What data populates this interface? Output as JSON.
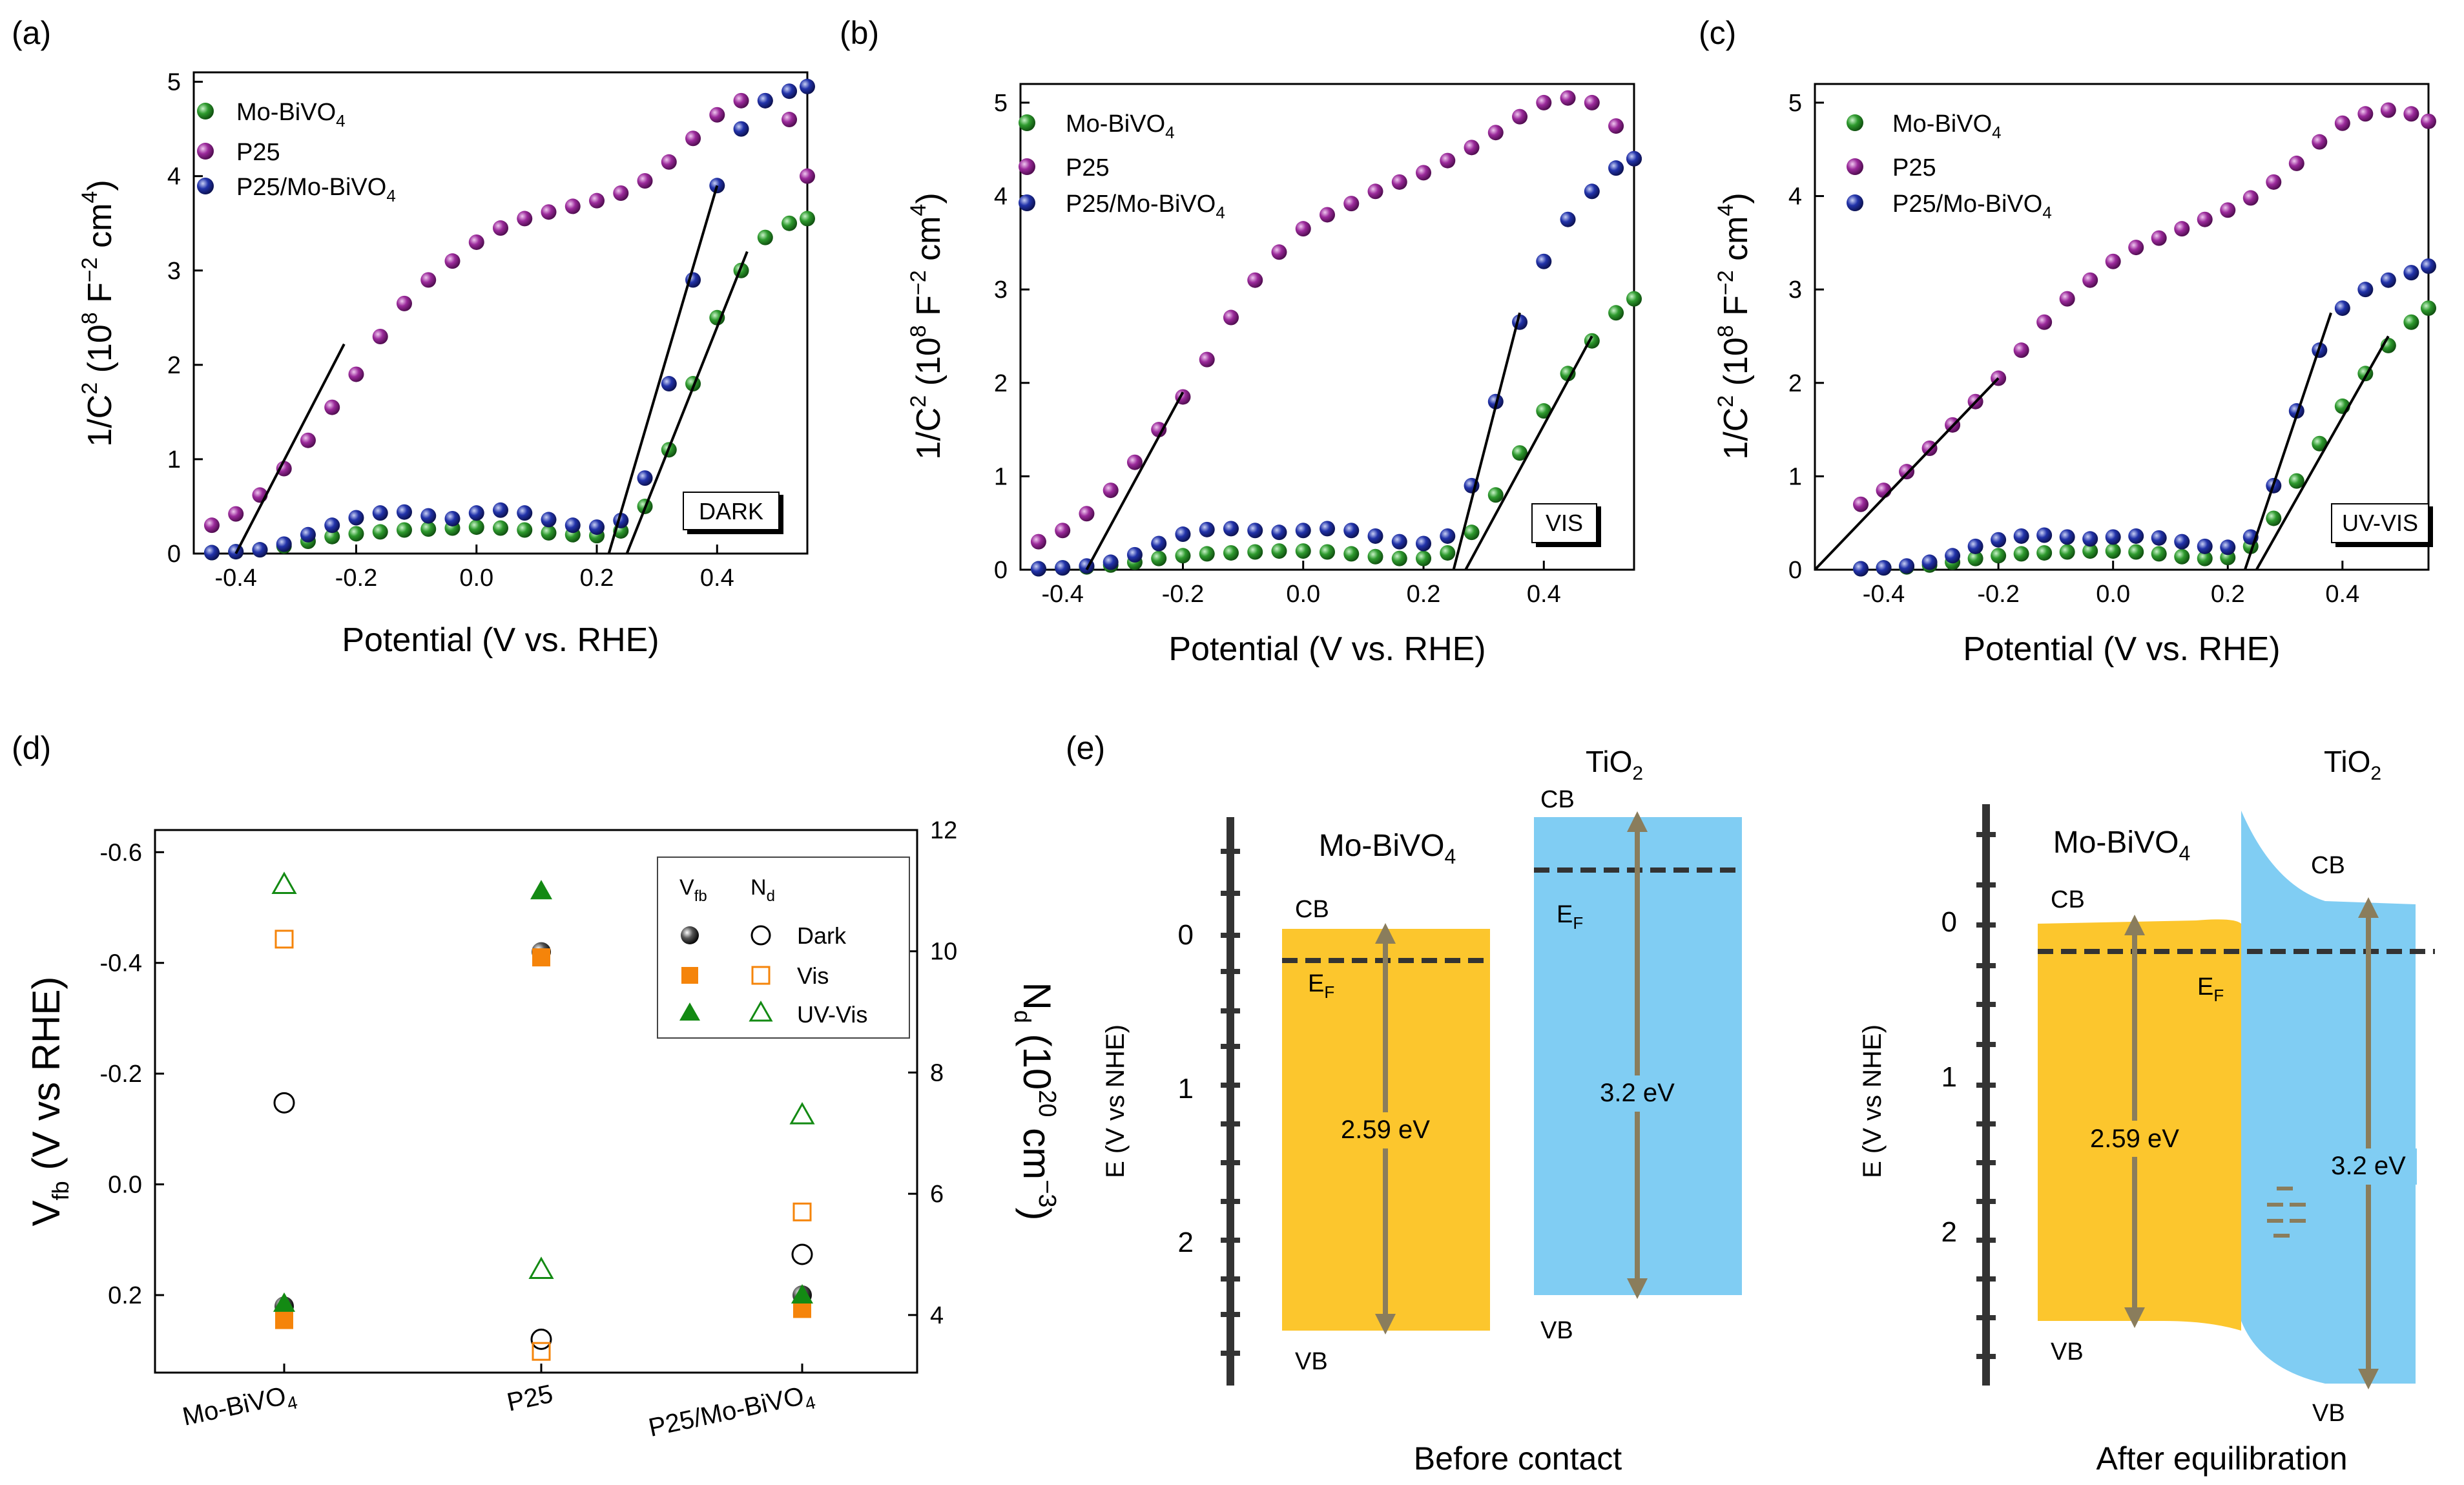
{
  "chart_data": [
    {
      "panel": "(a)",
      "type": "scatter",
      "title": "",
      "xlabel": "Potential (V vs. RHE)",
      "ylabel": "1/C",
      "ylabel_sup": "2",
      "ylabel_tail": " (10",
      "ylabel_exp": "8",
      "ylabel_unit": " F",
      "ylabel_unit_exp": "−2",
      "ylabel_unit2": " cm",
      "ylabel_unit2_exp": "4",
      "ylabel_end": ")",
      "xlim": [
        -0.47,
        0.55
      ],
      "ylim": [
        0,
        5.1
      ],
      "xticks": [
        "-0.4",
        "-0.2",
        "0.0",
        "0.2",
        "0.4"
      ],
      "xtick_values": [
        -0.4,
        -0.2,
        0.0,
        0.2,
        0.4
      ],
      "yticks": [
        "0",
        "1",
        "2",
        "3",
        "4",
        "5"
      ],
      "ytick_values": [
        0,
        1,
        2,
        3,
        4,
        5
      ],
      "condition_label": "DARK",
      "legend": [
        {
          "label": "Mo-BiVO",
          "sub": "4",
          "color": "#2e9a2e"
        },
        {
          "label": "P25",
          "sub": "",
          "color": "#9b2a9b"
        },
        {
          "label": "P25/Mo-BiVO",
          "sub": "4",
          "color": "#2233aa"
        }
      ],
      "series": [
        {
          "name": "P25",
          "color": "#9b2a9b",
          "x": [
            -0.44,
            -0.4,
            -0.36,
            -0.32,
            -0.28,
            -0.24,
            -0.2,
            -0.16,
            -0.12,
            -0.08,
            -0.04,
            0.0,
            0.04,
            0.08,
            0.12,
            0.16,
            0.2,
            0.24,
            0.28,
            0.32,
            0.36,
            0.4,
            0.44,
            0.48,
            0.52,
            0.55
          ],
          "y": [
            0.3,
            0.42,
            0.62,
            0.9,
            1.2,
            1.55,
            1.9,
            2.3,
            2.65,
            2.9,
            3.1,
            3.3,
            3.45,
            3.55,
            3.62,
            3.68,
            3.74,
            3.82,
            3.95,
            4.15,
            4.4,
            4.65,
            4.8,
            4.8,
            4.6,
            4.0
          ]
        },
        {
          "name": "Mo-BiVO4",
          "color": "#2e9a2e",
          "x": [
            -0.44,
            -0.4,
            -0.36,
            -0.32,
            -0.28,
            -0.24,
            -0.2,
            -0.16,
            -0.12,
            -0.08,
            -0.04,
            0.0,
            0.04,
            0.08,
            0.12,
            0.16,
            0.2,
            0.24,
            0.28,
            0.32,
            0.36,
            0.4,
            0.44,
            0.48,
            0.52,
            0.55
          ],
          "y": [
            0.01,
            0.02,
            0.04,
            0.08,
            0.13,
            0.18,
            0.21,
            0.23,
            0.25,
            0.26,
            0.27,
            0.28,
            0.27,
            0.25,
            0.22,
            0.2,
            0.19,
            0.24,
            0.5,
            1.1,
            1.8,
            2.5,
            3.0,
            3.35,
            3.5,
            3.55
          ]
        },
        {
          "name": "P25/Mo-BiVO4",
          "color": "#2233aa",
          "x": [
            -0.44,
            -0.4,
            -0.36,
            -0.32,
            -0.28,
            -0.24,
            -0.2,
            -0.16,
            -0.12,
            -0.08,
            -0.04,
            0.0,
            0.04,
            0.08,
            0.12,
            0.16,
            0.2,
            0.24,
            0.28,
            0.32,
            0.36,
            0.4,
            0.44,
            0.48,
            0.52,
            0.55
          ],
          "y": [
            0.01,
            0.02,
            0.04,
            0.1,
            0.2,
            0.3,
            0.38,
            0.43,
            0.44,
            0.4,
            0.37,
            0.43,
            0.46,
            0.43,
            0.36,
            0.3,
            0.28,
            0.35,
            0.8,
            1.8,
            2.9,
            3.9,
            4.5,
            4.8,
            4.9,
            4.95
          ]
        }
      ],
      "fit_lines": [
        {
          "x": [
            -0.4,
            -0.22
          ],
          "y": [
            0.0,
            2.22
          ]
        },
        {
          "x": [
            0.22,
            0.4
          ],
          "y": [
            0.0,
            3.9
          ]
        },
        {
          "x": [
            0.25,
            0.45
          ],
          "y": [
            0.0,
            3.2
          ]
        }
      ]
    },
    {
      "panel": "(b)",
      "type": "scatter",
      "title": "",
      "xlabel": "Potential (V vs. RHE)",
      "ylabel": "1/C",
      "ylabel_sup": "2",
      "ylabel_tail": " (10",
      "ylabel_exp": "8",
      "ylabel_unit": " F",
      "ylabel_unit_exp": "−2",
      "ylabel_unit2": " cm",
      "ylabel_unit2_exp": "4",
      "ylabel_end": ")",
      "xlim": [
        -0.47,
        0.55
      ],
      "ylim": [
        0,
        5.2
      ],
      "xticks": [
        "-0.4",
        "-0.2",
        "0.0",
        "0.2",
        "0.4"
      ],
      "xtick_values": [
        -0.4,
        -0.2,
        0.0,
        0.2,
        0.4
      ],
      "yticks": [
        "0",
        "1",
        "2",
        "3",
        "4",
        "5"
      ],
      "ytick_values": [
        0,
        1,
        2,
        3,
        4,
        5
      ],
      "condition_label": "VIS",
      "legend": [
        {
          "label": "Mo-BiVO",
          "sub": "4",
          "color": "#2e9a2e"
        },
        {
          "label": "P25",
          "sub": "",
          "color": "#9b2a9b"
        },
        {
          "label": "P25/Mo-BiVO",
          "sub": "4",
          "color": "#2233aa"
        }
      ],
      "series": [
        {
          "name": "P25",
          "color": "#9b2a9b",
          "x": [
            -0.44,
            -0.4,
            -0.36,
            -0.32,
            -0.28,
            -0.24,
            -0.2,
            -0.16,
            -0.12,
            -0.08,
            -0.04,
            0.0,
            0.04,
            0.08,
            0.12,
            0.16,
            0.2,
            0.24,
            0.28,
            0.32,
            0.36,
            0.4,
            0.44,
            0.48,
            0.52,
            0.55
          ],
          "y": [
            0.3,
            0.42,
            0.6,
            0.85,
            1.15,
            1.5,
            1.85,
            2.25,
            2.7,
            3.1,
            3.4,
            3.65,
            3.8,
            3.92,
            4.05,
            4.15,
            4.25,
            4.38,
            4.52,
            4.68,
            4.85,
            5.0,
            5.05,
            5.0,
            4.75,
            4.4
          ]
        },
        {
          "name": "Mo-BiVO4",
          "color": "#2e9a2e",
          "x": [
            -0.44,
            -0.4,
            -0.36,
            -0.32,
            -0.28,
            -0.24,
            -0.2,
            -0.16,
            -0.12,
            -0.08,
            -0.04,
            0.0,
            0.04,
            0.08,
            0.12,
            0.16,
            0.2,
            0.24,
            0.28,
            0.32,
            0.36,
            0.4,
            0.44,
            0.48,
            0.52,
            0.55
          ],
          "y": [
            0.01,
            0.02,
            0.03,
            0.05,
            0.08,
            0.12,
            0.15,
            0.17,
            0.18,
            0.19,
            0.2,
            0.2,
            0.19,
            0.17,
            0.14,
            0.12,
            0.12,
            0.18,
            0.4,
            0.8,
            1.25,
            1.7,
            2.1,
            2.45,
            2.75,
            2.9
          ]
        },
        {
          "name": "P25/Mo-BiVO4",
          "color": "#2233aa",
          "x": [
            -0.44,
            -0.4,
            -0.36,
            -0.32,
            -0.28,
            -0.24,
            -0.2,
            -0.16,
            -0.12,
            -0.08,
            -0.04,
            0.0,
            0.04,
            0.08,
            0.12,
            0.16,
            0.2,
            0.24,
            0.28,
            0.32,
            0.36,
            0.4,
            0.44,
            0.48,
            0.52,
            0.55
          ],
          "y": [
            0.01,
            0.02,
            0.04,
            0.08,
            0.16,
            0.28,
            0.38,
            0.43,
            0.44,
            0.42,
            0.4,
            0.42,
            0.44,
            0.42,
            0.36,
            0.3,
            0.28,
            0.36,
            0.9,
            1.8,
            2.65,
            3.3,
            3.75,
            4.05,
            4.3,
            4.4
          ]
        }
      ],
      "fit_lines": [
        {
          "x": [
            -0.36,
            -0.2
          ],
          "y": [
            0.0,
            1.9
          ]
        },
        {
          "x": [
            0.25,
            0.36
          ],
          "y": [
            0.0,
            2.75
          ]
        },
        {
          "x": [
            0.27,
            0.48
          ],
          "y": [
            0.0,
            2.5
          ]
        }
      ]
    },
    {
      "panel": "(c)",
      "type": "scatter",
      "title": "",
      "xlabel": "Potential (V vs. RHE)",
      "ylabel": "1/C",
      "ylabel_sup": "2",
      "ylabel_tail": " (10",
      "ylabel_exp": "8",
      "ylabel_unit": " F",
      "ylabel_unit_exp": "−2",
      "ylabel_unit2": " cm",
      "ylabel_unit2_exp": "4",
      "ylabel_end": ")",
      "xlim": [
        -0.52,
        0.55
      ],
      "ylim": [
        0,
        5.2
      ],
      "xticks": [
        "-0.4",
        "-0.2",
        "0.0",
        "0.2",
        "0.4"
      ],
      "xtick_values": [
        -0.4,
        -0.2,
        0.0,
        0.2,
        0.4
      ],
      "yticks": [
        "0",
        "1",
        "2",
        "3",
        "4",
        "5"
      ],
      "ytick_values": [
        0,
        1,
        2,
        3,
        4,
        5
      ],
      "condition_label": "UV-VIS",
      "legend": [
        {
          "label": "Mo-BiVO",
          "sub": "4",
          "color": "#2e9a2e"
        },
        {
          "label": "P25",
          "sub": "",
          "color": "#9b2a9b"
        },
        {
          "label": "P25/Mo-BiVO",
          "sub": "4",
          "color": "#2233aa"
        }
      ],
      "series": [
        {
          "name": "P25",
          "color": "#9b2a9b",
          "x": [
            -0.44,
            -0.4,
            -0.36,
            -0.32,
            -0.28,
            -0.24,
            -0.2,
            -0.16,
            -0.12,
            -0.08,
            -0.04,
            0.0,
            0.04,
            0.08,
            0.12,
            0.16,
            0.2,
            0.24,
            0.28,
            0.32,
            0.36,
            0.4,
            0.44,
            0.48,
            0.52,
            0.55
          ],
          "y": [
            0.7,
            0.85,
            1.05,
            1.3,
            1.55,
            1.8,
            2.05,
            2.35,
            2.65,
            2.9,
            3.1,
            3.3,
            3.45,
            3.55,
            3.65,
            3.75,
            3.85,
            3.98,
            4.15,
            4.35,
            4.58,
            4.78,
            4.88,
            4.92,
            4.88,
            4.8
          ]
        },
        {
          "name": "Mo-BiVO4",
          "color": "#2e9a2e",
          "x": [
            -0.44,
            -0.4,
            -0.36,
            -0.32,
            -0.28,
            -0.24,
            -0.2,
            -0.16,
            -0.12,
            -0.08,
            -0.04,
            0.0,
            0.04,
            0.08,
            0.12,
            0.16,
            0.2,
            0.24,
            0.28,
            0.32,
            0.36,
            0.4,
            0.44,
            0.48,
            0.52,
            0.55
          ],
          "y": [
            0.01,
            0.02,
            0.03,
            0.05,
            0.08,
            0.12,
            0.15,
            0.17,
            0.18,
            0.19,
            0.2,
            0.2,
            0.19,
            0.17,
            0.14,
            0.12,
            0.13,
            0.25,
            0.55,
            0.95,
            1.35,
            1.75,
            2.1,
            2.4,
            2.65,
            2.8
          ]
        },
        {
          "name": "P25/Mo-BiVO4",
          "color": "#2233aa",
          "x": [
            -0.44,
            -0.4,
            -0.36,
            -0.32,
            -0.28,
            -0.24,
            -0.2,
            -0.16,
            -0.12,
            -0.08,
            -0.04,
            0.0,
            0.04,
            0.08,
            0.12,
            0.16,
            0.2,
            0.24,
            0.28,
            0.32,
            0.36,
            0.4,
            0.44,
            0.48,
            0.52,
            0.55
          ],
          "y": [
            0.01,
            0.02,
            0.04,
            0.08,
            0.15,
            0.25,
            0.32,
            0.36,
            0.37,
            0.35,
            0.33,
            0.35,
            0.36,
            0.34,
            0.3,
            0.25,
            0.24,
            0.35,
            0.9,
            1.7,
            2.35,
            2.8,
            3.0,
            3.1,
            3.18,
            3.25
          ]
        }
      ],
      "fit_lines": [
        {
          "x": [
            -0.52,
            -0.2
          ],
          "y": [
            0.0,
            2.05
          ]
        },
        {
          "x": [
            0.23,
            0.38
          ],
          "y": [
            0.0,
            2.75
          ]
        },
        {
          "x": [
            0.25,
            0.48
          ],
          "y": [
            0.0,
            2.5
          ]
        }
      ]
    },
    {
      "panel": "(d)",
      "type": "scatter",
      "title": "",
      "categories": [
        "Mo-BiVO",
        "P25",
        "P25/Mo-BiVO"
      ],
      "category_subs": [
        "4",
        "",
        "4"
      ],
      "ylabel": "V",
      "ylabel_sub": "fb",
      "ylabel_rest": " (V vs RHE)",
      "y2label": "N",
      "y2label_sub": "d",
      "y2label_rest": " (10",
      "y2label_exp": "20",
      "y2label_unit": " cm",
      "y2label_unit_exp": "−3",
      "y2label_end": ")",
      "ylim": [
        0.34,
        -0.64
      ],
      "y2lim": [
        3.05,
        12.0
      ],
      "yticks": [
        "-0.6",
        "-0.4",
        "-0.2",
        "0.0",
        "0.2"
      ],
      "ytick_values": [
        -0.6,
        -0.4,
        -0.2,
        0.0,
        0.2
      ],
      "y2ticks": [
        "4",
        "6",
        "8",
        "10",
        "12"
      ],
      "y2tick_values": [
        4,
        6,
        8,
        10,
        12
      ],
      "legend_header_left": "V",
      "legend_header_left_sub": "fb",
      "legend_header_right": "N",
      "legend_header_right_sub": "d",
      "legend": [
        {
          "label": "Dark",
          "color": "#000000"
        },
        {
          "label": "Vis",
          "color": "#f5840a"
        },
        {
          "label": "UV-Vis",
          "color": "#138a13"
        }
      ],
      "series": [
        {
          "name": "Vfb Dark",
          "axis": "left",
          "marker": "sphere",
          "color": "#000000",
          "values": [
            0.22,
            -0.42,
            0.2
          ]
        },
        {
          "name": "Vfb Vis",
          "axis": "left",
          "marker": "square-filled",
          "color": "#f5840a",
          "values": [
            0.245,
            -0.41,
            0.225
          ]
        },
        {
          "name": "Vfb UV-Vis",
          "axis": "left",
          "marker": "triangle-filled",
          "color": "#138a13",
          "values": [
            0.215,
            -0.53,
            0.2
          ]
        },
        {
          "name": "Nd Dark",
          "axis": "right",
          "marker": "circle-open",
          "color": "#000000",
          "values": [
            7.5,
            3.6,
            5.0
          ]
        },
        {
          "name": "Nd Vis",
          "axis": "right",
          "marker": "square-open",
          "color": "#f5840a",
          "values": [
            10.2,
            3.4,
            5.7
          ]
        },
        {
          "name": "Nd UV-Vis",
          "axis": "right",
          "marker": "triangle-open",
          "color": "#138a13",
          "values": [
            11.1,
            4.75,
            7.3
          ]
        }
      ]
    }
  ],
  "panel_e": {
    "label": "(e)",
    "ylabel": "E (V vs NHE)",
    "ticks": [
      "0",
      "1",
      "2"
    ],
    "left_diagram": {
      "caption": "Before contact",
      "mo_label": "Mo-BiVO",
      "mo_sub": "4",
      "tio2_label": "TiO",
      "tio2_sub": "2",
      "cb": "CB",
      "vb": "VB",
      "cb2": "CB",
      "vb2": "VB",
      "ef": "E",
      "ef_sub": "F",
      "ef2": "E",
      "ef2_sub": "F",
      "gap1": "2.59 eV",
      "gap2": "3.2 eV"
    },
    "right_diagram": {
      "caption": "After equilibration",
      "mo_label": "Mo-BiVO",
      "mo_sub": "4",
      "tio2_label": "TiO",
      "tio2_sub": "2",
      "cb": "CB",
      "vb": "VB",
      "cb2": "CB",
      "vb2": "VB",
      "ef": "E",
      "ef_sub": "F",
      "gap1": "2.59 eV",
      "gap2": "3.2 eV"
    },
    "colors": {
      "mo": "#fcc62d",
      "tio2": "#80cdf3",
      "arrow": "#8a7d5c",
      "axis": "#333333"
    }
  }
}
